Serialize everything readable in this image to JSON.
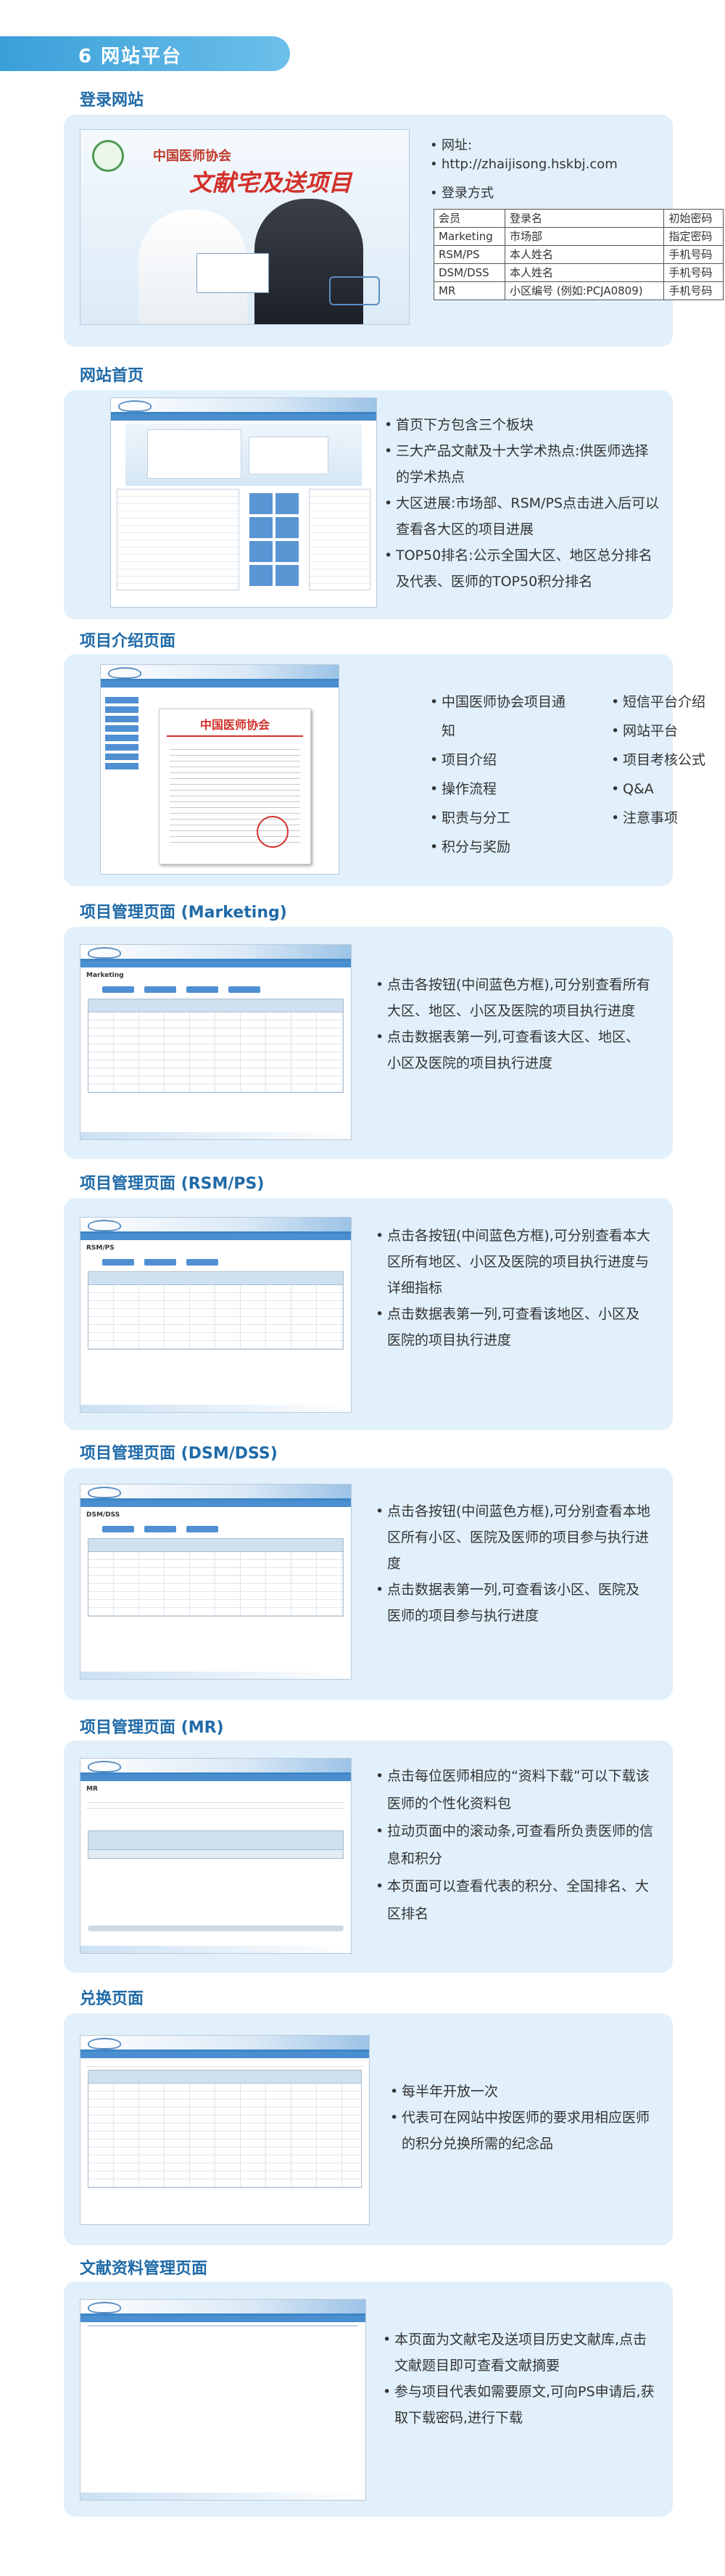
{
  "header": {
    "title": "6 网站平台"
  },
  "sections": {
    "login": {
      "title": "登录网站",
      "banner_logo": "中国医师协会",
      "banner_title": "文献宅及送项目",
      "address_label": "网址:",
      "address_url": "http://zhaijisong.hskbj.com",
      "method_label": "登录方式",
      "table": {
        "headers": [
          "会员",
          "登录名",
          "初始密码"
        ],
        "rows": [
          [
            "Marketing",
            "市场部",
            "指定密码"
          ],
          [
            "RSM/PS",
            "本人姓名",
            "手机号码"
          ],
          [
            "DSM/DSS",
            "本人姓名",
            "手机号码"
          ],
          [
            "MR",
            "小区编号 (例如:PCJA0809)",
            "手机号码"
          ]
        ]
      }
    },
    "home": {
      "title": "网站首页",
      "bullets": [
        "首页下方包含三个板块",
        "三大产品文献及十大学术热点:供医师选择的学术热点",
        "大区进展:市场部、RSM/PS点击进入后可以查看各大区的项目进展",
        "TOP50排名:公示全国大区、地区总分排名及代表、医师的TOP50积分排名"
      ]
    },
    "intro": {
      "title": "项目介绍页面",
      "doc_title": "中国医师协会",
      "left": [
        "中国医师协会项目通知",
        "项目介绍",
        "操作流程",
        "职责与分工",
        "积分与奖励"
      ],
      "right": [
        "短信平台介绍",
        "网站平台",
        "项目考核公式",
        "Q&A",
        "注意事项"
      ]
    },
    "marketing": {
      "title": "项目管理页面 (Marketing)",
      "label": "Marketing",
      "bullets": [
        "点击各按钮(中间蓝色方框),可分别查看所有大区、地区、小区及医院的项目执行进度",
        "点击数据表第一列,可查看该大区、地区、小区及医院的项目执行进度"
      ]
    },
    "rsm": {
      "title": "项目管理页面 (RSM/PS)",
      "label": "RSM/PS",
      "bullets": [
        "点击各按钮(中间蓝色方框),可分别查看本大区所有地区、小区及医院的项目执行进度与详细指标",
        "点击数据表第一列,可查看该地区、小区及医院的项目执行进度"
      ]
    },
    "dsm": {
      "title": "项目管理页面 (DSM/DSS)",
      "label": "DSM/DSS",
      "bullets": [
        "点击各按钮(中间蓝色方框),可分别查看本地区所有小区、医院及医师的项目参与执行进度",
        "点击数据表第一列,可查看该小区、医院及医师的项目参与执行进度"
      ]
    },
    "mr": {
      "title": "项目管理页面 (MR)",
      "label": "MR",
      "bullets": [
        "点击每位医师相应的“资料下载”可以下载该医师的个性化资料包",
        "拉动页面中的滚动条,可查看所负责医师的信息和积分",
        "本页面可以查看代表的积分、全国排名、大区排名"
      ]
    },
    "exchange": {
      "title": "兑换页面",
      "bullets": [
        "每半年开放一次",
        "代表可在网站中按医师的要求用相应医师的积分兑换所需的纪念品"
      ]
    },
    "docs": {
      "title": "文献资料管理页面",
      "bullets": [
        "本页面为文献宅及送项目历史文献库,点击文献题目即可查看文献摘要",
        "参与项目代表如需要原文,可向PS申请后,获取下载密码,进行下载"
      ]
    }
  },
  "colors": {
    "accent": "#3a9fd8",
    "panel": "#e1f0fb",
    "title": "#1f6aa8"
  }
}
